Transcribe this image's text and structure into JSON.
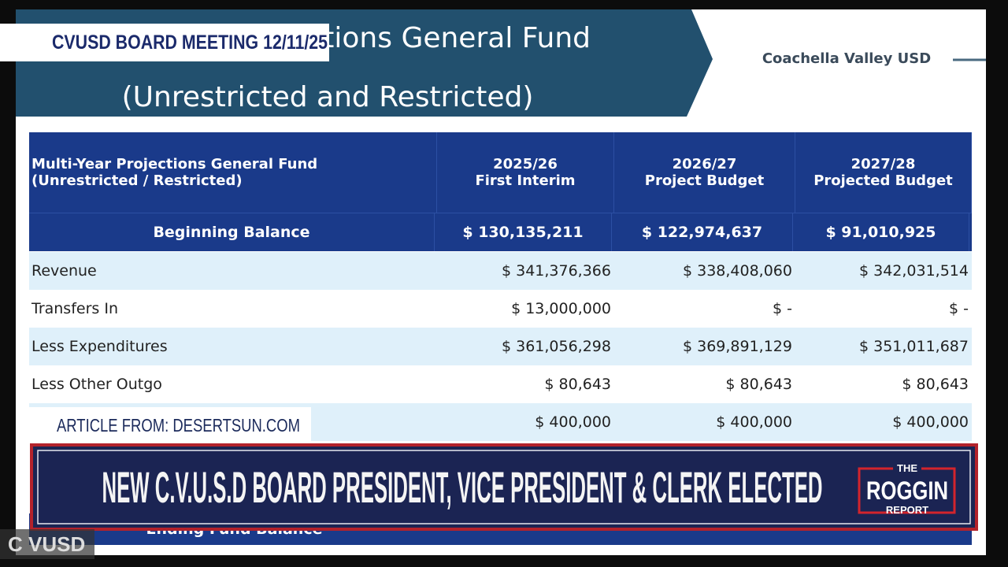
{
  "overlay": {
    "meeting_label": "CVUSD BOARD MEETING 12/11/25",
    "article_source": "ARTICLE FROM: DESERTSUN.COM",
    "headline": "NEW C.V.U.S.D BOARD PRESIDENT, VICE PRESIDENT & CLERK ELECTED",
    "logo": [
      "THE",
      "ROGGIN",
      "REPORT"
    ],
    "watermark": "C VUSD"
  },
  "slide": {
    "title": "Multi-Year Projections General Fund",
    "subtitle": "(Unrestricted and Restricted)",
    "organization": "Coachella Valley USD",
    "table": {
      "header": [
        [
          "Multi-Year Projections General Fund",
          "(Unrestricted / Restricted)"
        ],
        [
          "2025/26",
          "First Interim"
        ],
        [
          "2026/27",
          "Project Budget"
        ],
        [
          "2027/28",
          "Projected Budget"
        ]
      ],
      "beginning_balance": [
        "Beginning Balance",
        "$ 130,135,211",
        "$ 122,974,637",
        "$ 91,010,925"
      ],
      "rows": [
        {
          "label": "Revenue",
          "values": [
            "$ 341,376,366",
            "$ 338,408,060",
            "$ 342,031,514"
          ]
        },
        {
          "label": "Transfers In",
          "values": [
            "$ 13,000,000",
            "$ -",
            "$ -"
          ]
        },
        {
          "label": "Less Expenditures",
          "values": [
            "$ 361,056,298",
            "$ 369,891,129",
            "$ 351,011,687"
          ]
        },
        {
          "label": "Less Other Outgo",
          "values": [
            "$ 80,643",
            "$ 80,643",
            "$ 80,643"
          ]
        },
        {
          "values": [
            "$ 400,000",
            "$ 400,000",
            "$ 400,000"
          ]
        }
      ],
      "ending_row": {
        "label": "Ending Fund Balance"
      }
    }
  }
}
